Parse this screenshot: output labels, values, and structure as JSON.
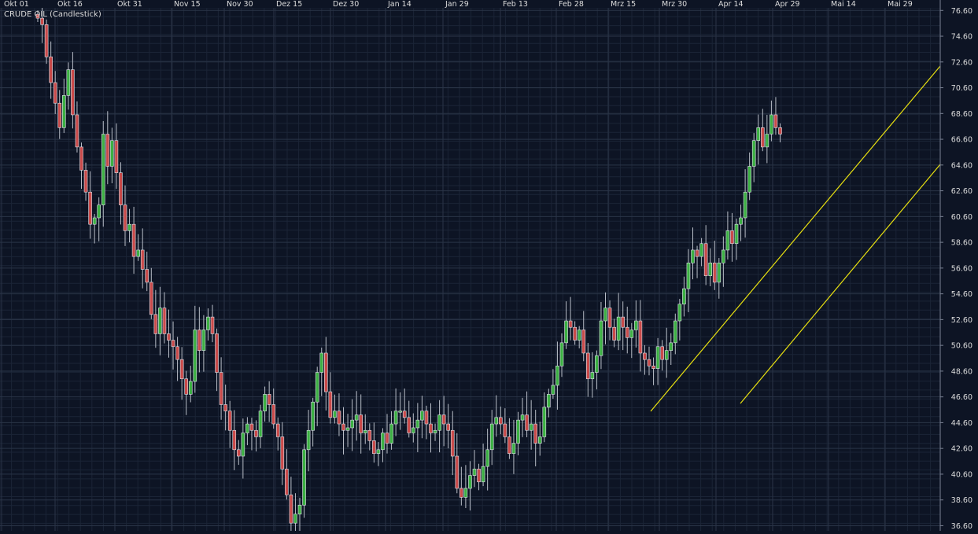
{
  "chart_data": {
    "type": "candlestick",
    "title": "CRUDE OIL (Candlestick)",
    "xlabel": "",
    "ylabel": "",
    "x_ticks": [
      "Okt 01",
      "Okt 16",
      "Okt 31",
      "Nov 15",
      "Nov 30",
      "Dez 15",
      "Dez 30",
      "Jan 14",
      "Jan 29",
      "Feb 13",
      "Feb 28",
      "Mrz 15",
      "Mrz 30",
      "Apr 14",
      "Apr 29",
      "Mai 14",
      "Mai 29"
    ],
    "y_ticks": [
      "76.60",
      "74.60",
      "72.60",
      "70.60",
      "68.60",
      "66.60",
      "64.60",
      "62.60",
      "60.60",
      "58.60",
      "56.60",
      "54.60",
      "52.60",
      "50.60",
      "48.60",
      "46.60",
      "44.60",
      "42.60",
      "40.60",
      "38.60",
      "36.60"
    ],
    "ylim": [
      36.2,
      76.8
    ],
    "grid": true,
    "colors": {
      "background": "#0d1424",
      "grid": "#2a3447",
      "bull": "#3cb043",
      "bear": "#c94a4a",
      "trendline": "#e8e010",
      "text": "#dddddd"
    },
    "closes": [
      76.0,
      75.5,
      73.0,
      71.0,
      69.4,
      67.5,
      70.0,
      72.0,
      68.5,
      66.0,
      64.2,
      62.5,
      60.0,
      60.5,
      61.5,
      67.0,
      64.5,
      66.5,
      64.0,
      61.5,
      59.5,
      60.0,
      57.5,
      58.0,
      56.5,
      55.5,
      53.0,
      51.5,
      53.5,
      51.5,
      51.0,
      50.5,
      49.5,
      48.0,
      46.8,
      47.8,
      51.8,
      50.2,
      51.8,
      52.8,
      51.5,
      48.5,
      46.0,
      45.5,
      44.0,
      42.5,
      42.0,
      43.8,
      44.5,
      44.0,
      43.5,
      45.5,
      46.8,
      46.0,
      44.5,
      43.5,
      41.0,
      39.0,
      36.8,
      37.5,
      38.2,
      42.5,
      44.0,
      46.2,
      48.5,
      50.0,
      47.0,
      45.0,
      45.5,
      44.5,
      44.0,
      44.2,
      44.8,
      45.2,
      43.8,
      44.0,
      43.2,
      42.2,
      42.5,
      43.8,
      43.0,
      44.5,
      45.5,
      45.5,
      45.0,
      43.8,
      44.2,
      44.8,
      45.5,
      44.5,
      43.8,
      44.0,
      45.2,
      44.5,
      44.0,
      42.0,
      39.5,
      38.8,
      39.5,
      40.5,
      41.0,
      40.0,
      41.2,
      42.5,
      44.5,
      45.0,
      44.5,
      43.5,
      42.2,
      43.0,
      44.8,
      45.2,
      44.0,
      44.5,
      43.0,
      43.5,
      45.8,
      46.8,
      47.5,
      49.0,
      50.8,
      52.5,
      52.0,
      51.0,
      51.8,
      50.0,
      48.0,
      48.5,
      49.8,
      52.5,
      53.5,
      52.0,
      51.0,
      52.8,
      52.0,
      51.2,
      51.8,
      52.5,
      50.0,
      49.5,
      49.0,
      48.8,
      50.5,
      49.5,
      50.2,
      50.8,
      52.5,
      53.8,
      55.0,
      57.0,
      58.0,
      57.5,
      58.5,
      56.0,
      57.0,
      55.5,
      57.0,
      58.0,
      59.5,
      58.5,
      60.0,
      60.5,
      62.5,
      64.5,
      66.5,
      67.5,
      66.0,
      67.0,
      68.5,
      67.5,
      67.0
    ]
  }
}
